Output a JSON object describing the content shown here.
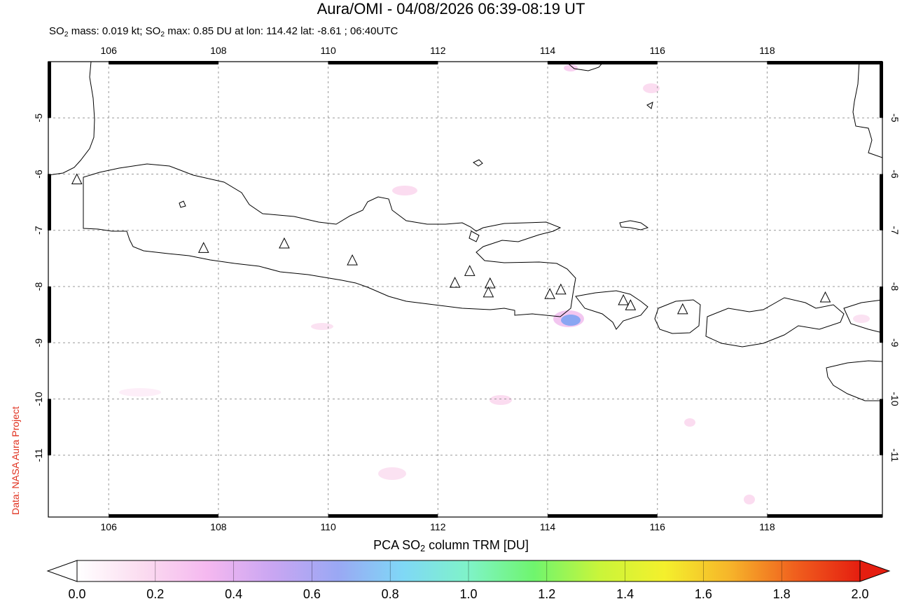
{
  "header": {
    "title": "Aura/OMI - 04/08/2026 06:39-08:19 UT",
    "subtitle_parts": [
      "SO",
      "2",
      " mass: 0.019 kt; SO",
      "2",
      " max: 0.85 DU at lon: 114.42 lat: -8.61 ; 06:40UTC"
    ]
  },
  "credit": "Data: NASA Aura Project",
  "map": {
    "lon_range": [
      104.9,
      120.1
    ],
    "lat_range": [
      -12.1,
      -4.0
    ],
    "lon_ticks": [
      106,
      108,
      110,
      112,
      114,
      116,
      118
    ],
    "lon_tick_labels": [
      "106",
      "108",
      "110",
      "112",
      "114",
      "116",
      "118"
    ],
    "lat_ticks": [
      -5,
      -6,
      -7,
      -8,
      -9,
      -10,
      -11
    ],
    "lat_tick_labels": [
      "-5",
      "-6",
      "-7",
      "-8",
      "-9",
      "-10",
      "-11"
    ],
    "volcanoes": [
      {
        "lon": 105.42,
        "lat": -6.1
      },
      {
        "lon": 107.73,
        "lat": -7.32
      },
      {
        "lon": 109.2,
        "lat": -7.24
      },
      {
        "lon": 110.44,
        "lat": -7.54
      },
      {
        "lon": 112.31,
        "lat": -7.94
      },
      {
        "lon": 112.58,
        "lat": -7.73
      },
      {
        "lon": 112.95,
        "lat": -7.95
      },
      {
        "lon": 112.92,
        "lat": -8.11
      },
      {
        "lon": 114.04,
        "lat": -8.14
      },
      {
        "lon": 114.24,
        "lat": -8.06
      },
      {
        "lon": 115.38,
        "lat": -8.25
      },
      {
        "lon": 115.51,
        "lat": -8.34
      },
      {
        "lon": 116.46,
        "lat": -8.41
      },
      {
        "lon": 119.06,
        "lat": -8.2
      }
    ],
    "so2_max": {
      "lon": 114.42,
      "lat": -8.61,
      "value": 0.85
    }
  },
  "colorbar": {
    "title_parts": [
      "PCA SO",
      "2",
      " column TRM [DU]"
    ],
    "min": 0.0,
    "max": 2.0,
    "tick_values": [
      0.0,
      0.2,
      0.4,
      0.6,
      0.8,
      1.0,
      1.2,
      1.4,
      1.6,
      1.8,
      2.0
    ],
    "tick_labels": [
      "0.0",
      "0.2",
      "0.4",
      "0.6",
      "0.8",
      "1.0",
      "1.2",
      "1.4",
      "1.6",
      "1.8",
      "2.0"
    ],
    "colors": [
      "#ffffff",
      "#fbdcf0",
      "#f5b8f0",
      "#c9a6f2",
      "#9aa8f4",
      "#7fd8f6",
      "#7ff3c8",
      "#6ff56e",
      "#c9f53a",
      "#f4f02c",
      "#f6b52a",
      "#f0601e",
      "#e51e10"
    ]
  }
}
